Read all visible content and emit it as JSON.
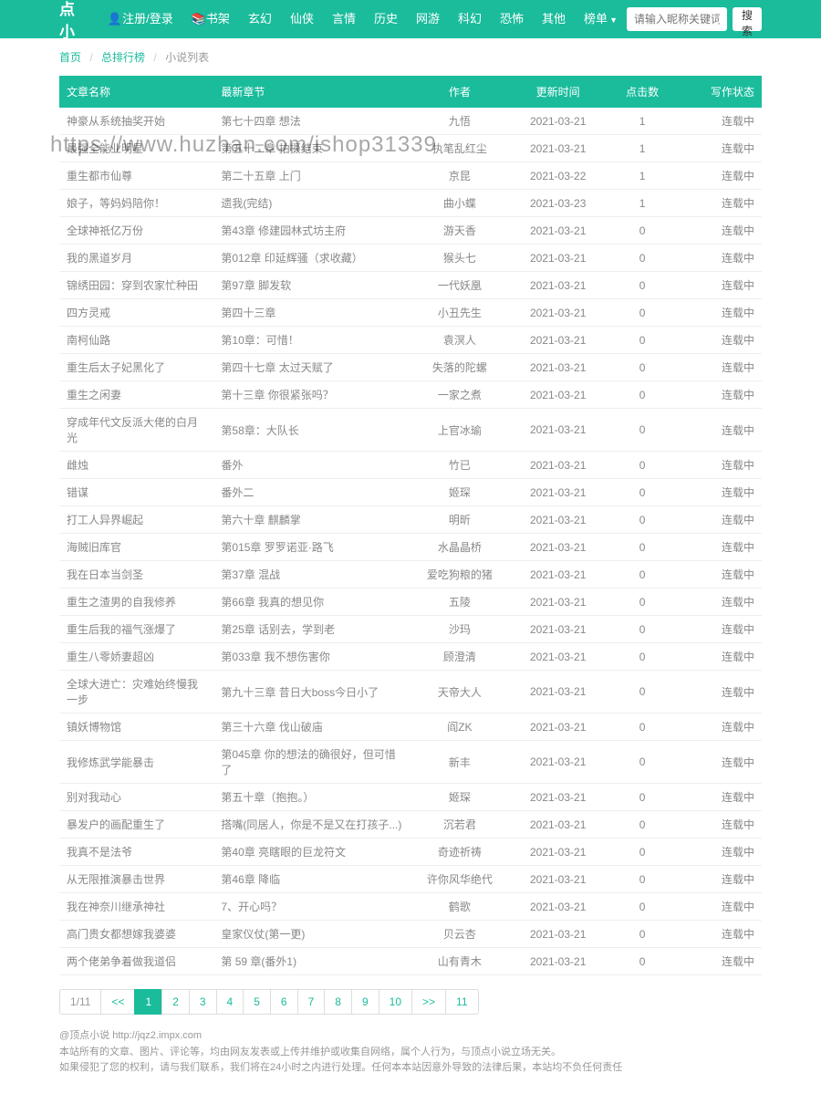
{
  "nav": {
    "brand": "顶点小说",
    "login": "注册/登录",
    "items": [
      "书架",
      "玄幻",
      "仙侠",
      "言情",
      "历史",
      "网游",
      "科幻",
      "恐怖",
      "其他",
      "榜单"
    ],
    "search_placeholder": "请输入昵称关键词",
    "search_btn": "搜索"
  },
  "breadcrumb": {
    "home": "首页",
    "rank": "总排行榜",
    "current": "小说列表"
  },
  "table": {
    "headers": {
      "title": "文章名称",
      "chapter": "最新章节",
      "author": "作者",
      "time": "更新时间",
      "clicks": "点击数",
      "status": "写作状态"
    },
    "rows": [
      {
        "title": "神豪从系统抽奖开始",
        "chapter": "第七十四章 想法",
        "author": "九悟",
        "time": "2021-03-21",
        "clicks": "1",
        "status": "连载中"
      },
      {
        "title": "最强全能业明星",
        "chapter": "第五十二章 拍摄结束",
        "author": "执笔乱红尘",
        "time": "2021-03-21",
        "clicks": "1",
        "status": "连载中"
      },
      {
        "title": "重生都市仙尊",
        "chapter": "第二十五章 上门",
        "author": "京昆",
        "time": "2021-03-22",
        "clicks": "1",
        "status": "连载中"
      },
      {
        "title": "娘子，等妈妈陪你！",
        "chapter": "遗我(完结)",
        "author": "曲小蝶",
        "time": "2021-03-23",
        "clicks": "1",
        "status": "连载中"
      },
      {
        "title": "全球神祇亿万份",
        "chapter": "第43章 修建园林式坊主府",
        "author": "游天香",
        "time": "2021-03-21",
        "clicks": "0",
        "status": "连载中"
      },
      {
        "title": "我的黑道岁月",
        "chapter": "第012章 印延辉骚（求收藏）",
        "author": "猴头七",
        "time": "2021-03-21",
        "clicks": "0",
        "status": "连载中"
      },
      {
        "title": "锦绣田园：穿到农家忙种田",
        "chapter": "第97章 脚发软",
        "author": "一代妖凰",
        "time": "2021-03-21",
        "clicks": "0",
        "status": "连载中"
      },
      {
        "title": "四方灵戒",
        "chapter": "第四十三章",
        "author": "小丑先生",
        "time": "2021-03-21",
        "clicks": "0",
        "status": "连载中"
      },
      {
        "title": "南柯仙路",
        "chapter": "第10章：可惜！",
        "author": "袁溟人",
        "time": "2021-03-21",
        "clicks": "0",
        "status": "连载中"
      },
      {
        "title": "重生后太子妃黑化了",
        "chapter": "第四十七章 太过天赋了",
        "author": "失落的陀螺",
        "time": "2021-03-21",
        "clicks": "0",
        "status": "连载中"
      },
      {
        "title": "重生之闲妻",
        "chapter": "第十三章 你很紧张吗？",
        "author": "一家之煮",
        "time": "2021-03-21",
        "clicks": "0",
        "status": "连载中"
      },
      {
        "title": "穿成年代文反派大佬的白月光",
        "chapter": "第58章：大队长",
        "author": "上官冰瑜",
        "time": "2021-03-21",
        "clicks": "0",
        "status": "连载中"
      },
      {
        "title": "雌烛",
        "chapter": "番外",
        "author": "竹已",
        "time": "2021-03-21",
        "clicks": "0",
        "status": "连载中"
      },
      {
        "title": "错谋",
        "chapter": "番外二",
        "author": "姬琛",
        "time": "2021-03-21",
        "clicks": "0",
        "status": "连载中"
      },
      {
        "title": "打工人异界崛起",
        "chapter": "第六十章 麒麟掌",
        "author": "明昕",
        "time": "2021-03-21",
        "clicks": "0",
        "status": "连载中"
      },
      {
        "title": "海贼旧库官",
        "chapter": "第015章 罗罗诺亚·路飞",
        "author": "水晶晶桥",
        "time": "2021-03-21",
        "clicks": "0",
        "status": "连载中"
      },
      {
        "title": "我在日本当剑圣",
        "chapter": "第37章 混战",
        "author": "爱吃狗粮的猪",
        "time": "2021-03-21",
        "clicks": "0",
        "status": "连载中"
      },
      {
        "title": "重生之渣男的自我修养",
        "chapter": "第66章 我真的想见你",
        "author": "五陵",
        "time": "2021-03-21",
        "clicks": "0",
        "status": "连载中"
      },
      {
        "title": "重生后我的福气涨爆了",
        "chapter": "第25章 话别去，学到老",
        "author": "沙玛",
        "time": "2021-03-21",
        "clicks": "0",
        "status": "连载中"
      },
      {
        "title": "重生八零娇妻超凶",
        "chapter": "第033章 我不想伤害你",
        "author": "顾澄清",
        "time": "2021-03-21",
        "clicks": "0",
        "status": "连载中"
      },
      {
        "title": "全球大进亡：灾难始终慢我一步",
        "chapter": "第九十三章 昔日大boss今日小了",
        "author": "天帝大人",
        "time": "2021-03-21",
        "clicks": "0",
        "status": "连载中"
      },
      {
        "title": "镇妖博物馆",
        "chapter": "第三十六章 伐山破庙",
        "author": "阎ZK",
        "time": "2021-03-21",
        "clicks": "0",
        "status": "连载中"
      },
      {
        "title": "我修炼武学能暴击",
        "chapter": "第045章 你的想法的确很好，但可惜了",
        "author": "新丰",
        "time": "2021-03-21",
        "clicks": "0",
        "status": "连载中"
      },
      {
        "title": "别对我动心",
        "chapter": "第五十章（抱抱。）",
        "author": "姬琛",
        "time": "2021-03-21",
        "clicks": "0",
        "status": "连载中"
      },
      {
        "title": "暴发户的画配重生了",
        "chapter": "搭嘴(同居人，你是不是又在打孩子...)",
        "author": "沉若君",
        "time": "2021-03-21",
        "clicks": "0",
        "status": "连载中"
      },
      {
        "title": "我真不是法爷",
        "chapter": "第40章 亮瞎眼的巨龙符文",
        "author": "奇迹祈祷",
        "time": "2021-03-21",
        "clicks": "0",
        "status": "连载中"
      },
      {
        "title": "从无限推演暴击世界",
        "chapter": "第46章 降临",
        "author": "许你风华绝代",
        "time": "2021-03-21",
        "clicks": "0",
        "status": "连载中"
      },
      {
        "title": "我在神奈川继承神社",
        "chapter": "7、开心吗？",
        "author": "鹤歌",
        "time": "2021-03-21",
        "clicks": "0",
        "status": "连载中"
      },
      {
        "title": "高门贵女都想嫁我婆婆",
        "chapter": "皇家仪仗(第一更)",
        "author": "贝云杏",
        "time": "2021-03-21",
        "clicks": "0",
        "status": "连载中"
      },
      {
        "title": "两个佬弟争着做我道侣",
        "chapter": "第 59 章(番外1)",
        "author": "山有青木",
        "time": "2021-03-21",
        "clicks": "0",
        "status": "连载中"
      }
    ]
  },
  "pagination": {
    "info": "1/11",
    "first": "<<",
    "pages": [
      "1",
      "2",
      "3",
      "4",
      "5",
      "6",
      "7",
      "8",
      "9",
      "10"
    ],
    "next": ">>",
    "last": "11",
    "active": "1"
  },
  "footer": {
    "line1": "@顶点小说   http://jqz2.impx.com",
    "line2": "本站所有的文章、图片、评论等，均由网友发表或上传并维护或收集自网络，属个人行为，与顶点小说立场无关。",
    "line3": "如果侵犯了您的权利，请与我们联系，我们将在24小时之内进行处理。任何本本站因意外导致的法律后果，本站均不负任何责任"
  },
  "watermark": "https://www.huzhan.com/ishop31339"
}
